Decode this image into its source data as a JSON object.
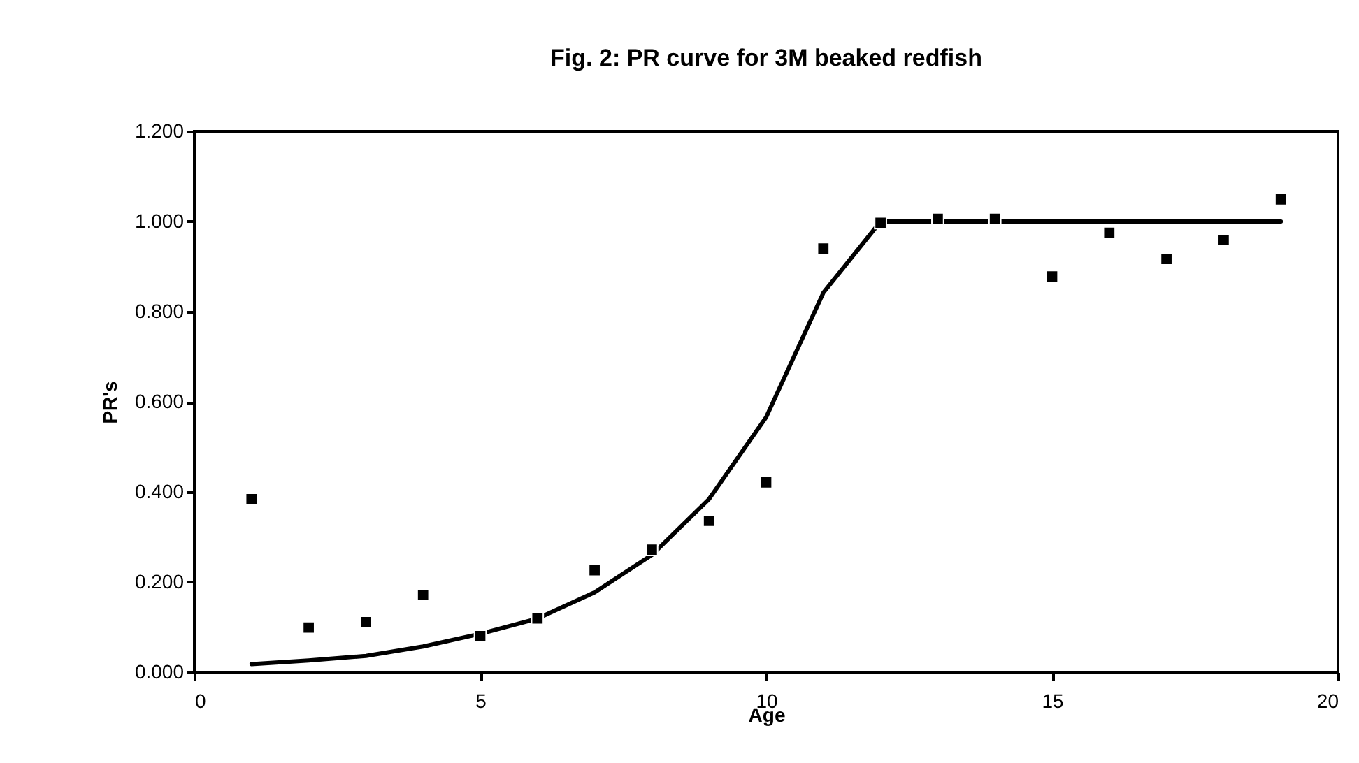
{
  "chart_data": {
    "type": "scatter",
    "title": "Fig. 2: PR curve for 3M beaked redfish",
    "xlabel": "Age",
    "ylabel": "PR's",
    "x": [
      1,
      2,
      3,
      4,
      5,
      6,
      7,
      8,
      9,
      10,
      11,
      12,
      13,
      14,
      15,
      16,
      17,
      18,
      19
    ],
    "series": [
      {
        "color": "#000000",
        "marker": "square",
        "values": [
          0.384,
          0.099,
          0.111,
          0.171,
          0.08,
          0.119,
          0.226,
          0.272,
          0.336,
          0.421,
          0.94,
          0.997,
          1.006,
          1.006,
          0.878,
          0.975,
          0.917,
          0.959,
          1.049
        ]
      },
      {
        "type": "line",
        "color": "#000000",
        "marker": "none",
        "line_style": "solid",
        "values": [
          0.018,
          0.026,
          0.036,
          0.057,
          0.085,
          0.119,
          0.177,
          0.26,
          0.384,
          0.566,
          0.842,
          1.0,
          1.0,
          1.0,
          1.0,
          1.0,
          1.0,
          1.0,
          1.0
        ]
      }
    ],
    "xlim": [
      0,
      20
    ],
    "xticks": [
      0,
      5,
      10,
      15,
      20
    ],
    "ylim": [
      0,
      1.2
    ],
    "yticks": [
      {
        "value": 0,
        "label": "0.000"
      },
      {
        "value": 0.2,
        "label": "0.200"
      },
      {
        "value": 0.4,
        "label": "0.400"
      },
      {
        "value": 0.6,
        "label": "0.600"
      },
      {
        "value": 0.8,
        "label": "0.800"
      },
      {
        "value": 1.0,
        "label": "1.000"
      },
      {
        "value": 1.2,
        "label": "1.200"
      }
    ],
    "grid": false
  }
}
